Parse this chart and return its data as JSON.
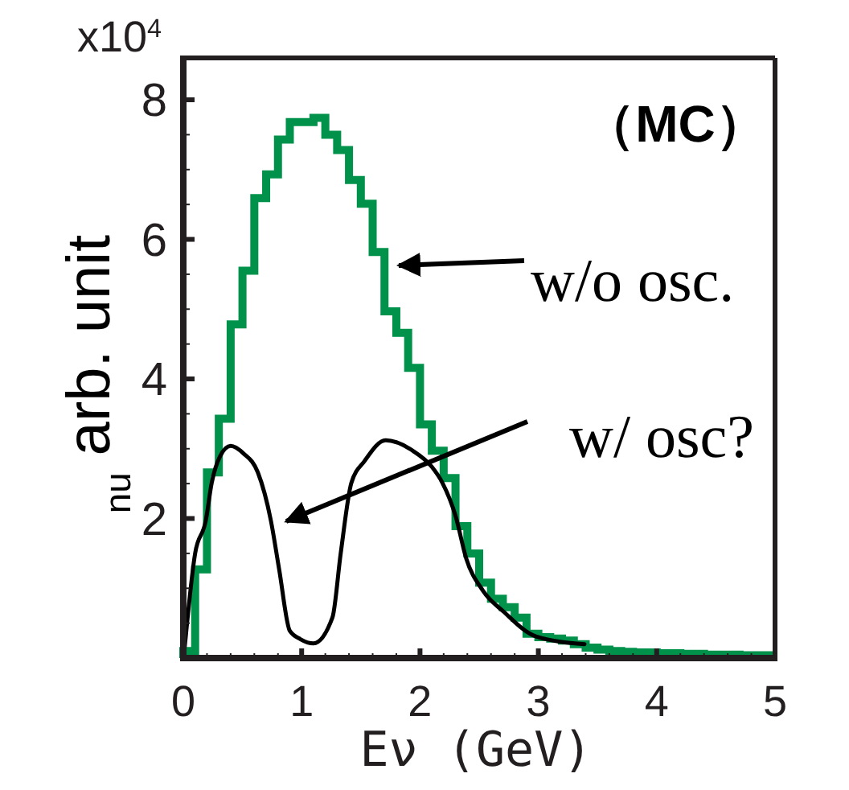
{
  "chart_data": {
    "type": "histogram",
    "xlabel": "Eν (GeV)",
    "ylabel": "$_{nu}$ arb. unit",
    "annotations": [
      "（MC）",
      "x10$^{4}$",
      "w/o osc.",
      "w/ osc?"
    ],
    "xlim": [
      0,
      5
    ],
    "ylim": [
      0,
      8.6
    ],
    "xticks": [
      0,
      {
        "value": 0.2,
        "label": null
      },
      {
        "value": 0.4,
        "label": null
      },
      {
        "value": 0.6,
        "label": null
      },
      {
        "value": 0.8,
        "label": null
      },
      1,
      {
        "value": 1.2,
        "label": null
      },
      {
        "value": 1.4,
        "label": null
      },
      {
        "value": 1.6,
        "label": null
      },
      {
        "value": 1.8,
        "label": null
      },
      2,
      {
        "value": 2.2,
        "label": null
      },
      {
        "value": 2.4,
        "label": null
      },
      {
        "value": 2.6,
        "label": null
      },
      {
        "value": 2.8,
        "label": null
      },
      3,
      {
        "value": 3.2,
        "label": null
      },
      {
        "value": 3.4,
        "label": null
      },
      {
        "value": 3.6,
        "label": null
      },
      {
        "value": 3.8,
        "label": null
      },
      4,
      {
        "value": 4.2,
        "label": null
      },
      {
        "value": 4.4,
        "label": null
      },
      {
        "value": 4.6,
        "label": null
      },
      {
        "value": 4.8,
        "label": null
      },
      5
    ],
    "yticks": [
      {
        "value": 0,
        "label": null
      },
      {
        "value": 0.5,
        "label": null
      },
      {
        "value": 1,
        "label": null
      },
      {
        "value": 1.5,
        "label": null
      },
      2,
      {
        "value": 2.5,
        "label": null
      },
      {
        "value": 3,
        "label": null
      },
      {
        "value": 3.5,
        "label": null
      },
      4,
      {
        "value": 4.5,
        "label": null
      },
      {
        "value": 5,
        "label": null
      },
      {
        "value": 5.5,
        "label": null
      },
      6,
      {
        "value": 6.5,
        "label": null
      },
      {
        "value": 7,
        "label": null
      },
      {
        "value": 7.5,
        "label": null
      },
      8
    ],
    "series": [
      {
        "color": "#00924a",
        "bins": [
          0,
          0.1,
          0.2,
          0.3,
          0.4,
          0.5,
          0.6,
          0.7,
          0.8,
          0.9,
          1,
          1.1,
          1.2,
          1.3,
          1.4,
          1.5,
          1.6,
          1.7,
          1.8,
          1.9,
          2,
          2.1,
          2.2,
          2.3,
          2.4,
          2.5,
          2.6,
          2.7,
          2.8,
          2.9,
          3,
          3.1,
          3.2,
          3.3,
          3.4,
          3.5,
          3.6,
          3.7,
          3.8,
          3.9,
          4,
          4.1,
          4.2,
          4.3,
          4.4,
          4.5,
          4.6,
          4.7,
          4.8,
          4.9,
          5
        ],
        "values": [
          0.1,
          1.27,
          2.66,
          3.43,
          4.78,
          5.55,
          6.59,
          6.93,
          7.43,
          7.68,
          7.68,
          7.74,
          7.5,
          7.28,
          6.85,
          6.51,
          5.82,
          4.97,
          4.66,
          4.16,
          3.35,
          2.97,
          2.58,
          1.89,
          1.5,
          1.08,
          0.85,
          0.73,
          0.58,
          0.35,
          0.3,
          0.28,
          0.25,
          0.2,
          0.15,
          0.12,
          0.1,
          0.09,
          0.08,
          0.08,
          0.07,
          0.07,
          0.06,
          0.06,
          0.05,
          0.05,
          0.05,
          0.04,
          0.04,
          0.04
        ]
      },
      {
        "type": "line",
        "color": "#000000",
        "x": [
          0.01,
          0.1,
          0.19,
          0.24,
          0.31,
          0.4,
          0.51,
          0.63,
          0.74,
          0.81,
          0.9,
          0.99,
          1.1,
          1.26,
          1.33,
          1.42,
          1.53,
          1.71,
          1.94,
          2.1,
          2.19,
          2.3,
          2.39,
          2.53,
          2.71,
          2.98,
          3.39
        ],
        "values": [
          0.12,
          1.5,
          1.97,
          2.51,
          2.89,
          3.04,
          2.93,
          2.66,
          1.97,
          1.27,
          0.39,
          0.27,
          0.21,
          0.58,
          1.5,
          2.51,
          2.82,
          3.12,
          2.97,
          2.74,
          2.51,
          2.04,
          1.43,
          0.97,
          0.66,
          0.31,
          0.2
        ]
      }
    ]
  }
}
